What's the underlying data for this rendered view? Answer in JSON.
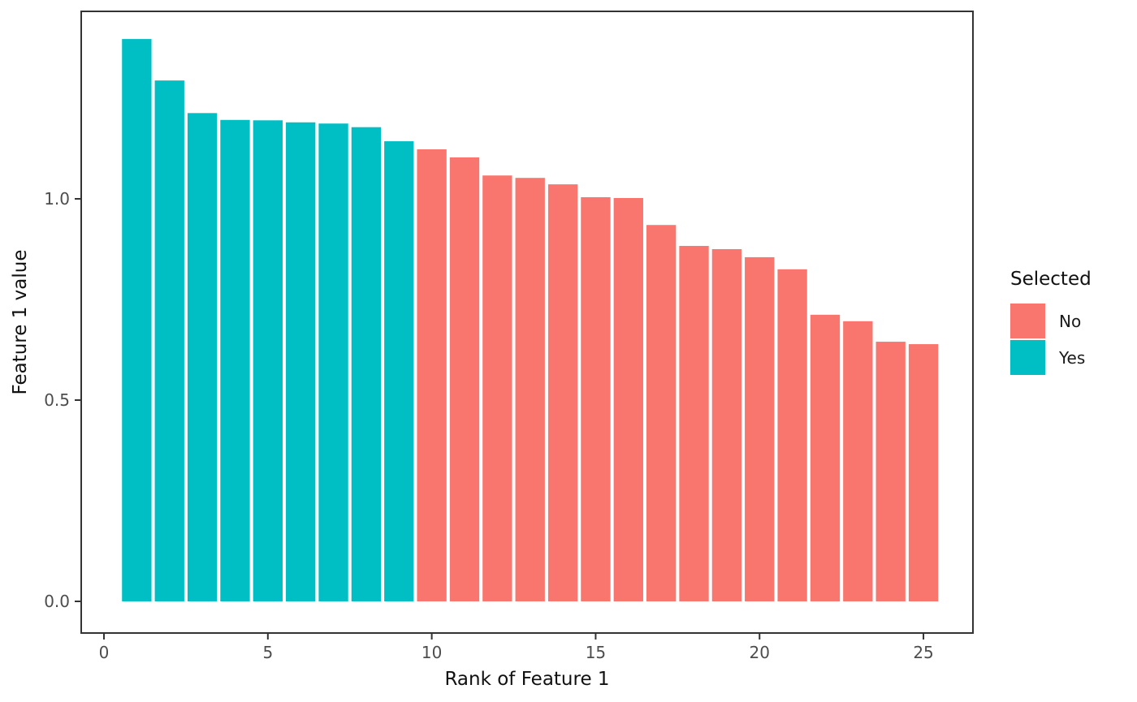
{
  "chart_data": {
    "type": "bar",
    "title": "",
    "xlabel": "Rank of Feature 1",
    "ylabel": "Feature 1 value",
    "x": [
      1,
      2,
      3,
      4,
      5,
      6,
      7,
      8,
      9,
      10,
      11,
      12,
      13,
      14,
      15,
      16,
      17,
      18,
      19,
      20,
      21,
      22,
      23,
      24,
      25
    ],
    "values": [
      1.397,
      1.294,
      1.213,
      1.196,
      1.195,
      1.19,
      1.187,
      1.178,
      1.143,
      1.123,
      1.103,
      1.058,
      1.052,
      1.036,
      1.004,
      1.002,
      0.935,
      0.883,
      0.875,
      0.855,
      0.825,
      0.712,
      0.696,
      0.645,
      0.639
    ],
    "selected": [
      "Yes",
      "Yes",
      "Yes",
      "Yes",
      "Yes",
      "Yes",
      "Yes",
      "Yes",
      "Yes",
      "No",
      "No",
      "No",
      "No",
      "No",
      "No",
      "No",
      "No",
      "No",
      "No",
      "No",
      "No",
      "No",
      "No",
      "No",
      "No"
    ],
    "series_colors": {
      "No": "#F8766D",
      "Yes": "#00BFC4"
    },
    "bar_width": 0.9,
    "x_ticks": [
      0,
      5,
      10,
      15,
      20,
      25
    ],
    "x_tick_labels": [
      "0",
      "5",
      "10",
      "15",
      "20",
      "25"
    ],
    "y_ticks": [
      0.0,
      0.5,
      1.0
    ],
    "y_tick_labels": [
      "0.0",
      "0.5",
      "1.0"
    ],
    "xlim": [
      -0.694,
      26.51
    ],
    "ylim": [
      -0.0786,
      1.4657
    ],
    "grid": false,
    "legend": {
      "title": "Selected",
      "position": "right",
      "entries": [
        {
          "label": "No",
          "color": "#F8766D"
        },
        {
          "label": "Yes",
          "color": "#00BFC4"
        }
      ]
    },
    "style": {
      "panel_border_color": "#333333",
      "tick_color": "#333333",
      "tick_label_color": "#4d4d4d",
      "background": "#ffffff"
    }
  }
}
